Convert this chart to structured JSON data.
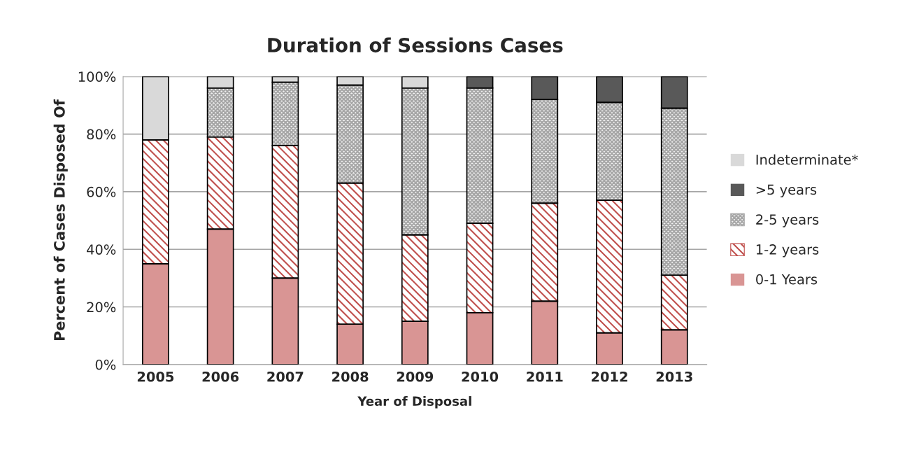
{
  "chart_data": {
    "type": "bar",
    "title": "Duration of Sessions Cases",
    "xlabel": "Year of Disposal",
    "ylabel": "Percent of Cases Disposed Of",
    "categories": [
      "2005",
      "2006",
      "2007",
      "2008",
      "2009",
      "2010",
      "2011",
      "2012",
      "2013"
    ],
    "stacked": true,
    "series": [
      {
        "name": "0-1 Years",
        "color": "#d99594",
        "values": [
          35,
          47,
          30,
          14,
          15,
          18,
          22,
          11,
          12
        ]
      },
      {
        "name": "1-2 years",
        "color": "#c0504d",
        "values": [
          43,
          32,
          46,
          49,
          30,
          31,
          34,
          46,
          19
        ]
      },
      {
        "name": "2-5 years",
        "color": "#a6a6a6",
        "values": [
          0,
          17,
          22,
          34,
          51,
          47,
          36,
          34,
          58
        ]
      },
      {
        "name": ">5 years",
        "color": "#595959",
        "values": [
          0,
          0,
          0,
          0,
          0,
          4,
          8,
          9,
          11
        ]
      },
      {
        "name": "Indeterminate*",
        "color": "#d9d9d9",
        "values": [
          22,
          4,
          2,
          3,
          4,
          0,
          0,
          0,
          0
        ]
      }
    ],
    "ylim": [
      0,
      100
    ],
    "yticks": [
      {
        "value": 0,
        "label": "0%"
      },
      {
        "value": 20,
        "label": "20%"
      },
      {
        "value": 40,
        "label": "40%"
      },
      {
        "value": 60,
        "label": "60%"
      },
      {
        "value": 80,
        "label": "80%"
      },
      {
        "value": 100,
        "label": "100%"
      }
    ],
    "grid": "y",
    "legend": "right"
  }
}
